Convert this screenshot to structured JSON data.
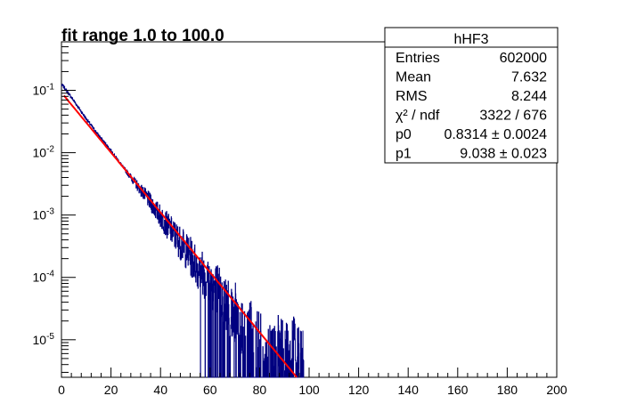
{
  "chart_data": {
    "type": "histogram",
    "title": "fit range 1.0 to 100.0",
    "xlabel": "",
    "ylabel": "",
    "xlim": [
      0,
      200
    ],
    "ylim": [
      2.5e-06,
      0.6
    ],
    "ylog": true,
    "x_ticks": [
      "0",
      "20",
      "40",
      "60",
      "80",
      "100",
      "120",
      "140",
      "160",
      "180",
      "200"
    ],
    "y_ticks": [
      {
        "base": "10",
        "exp": "-1",
        "value": 0.1
      },
      {
        "base": "10",
        "exp": "-2",
        "value": 0.01
      },
      {
        "base": "10",
        "exp": "-3",
        "value": 0.001
      },
      {
        "base": "10",
        "exp": "-4",
        "value": 0.0001
      },
      {
        "base": "10",
        "exp": "-5",
        "value": 1e-05
      }
    ],
    "histogram": {
      "color": "#000080",
      "x": [
        0.5,
        5,
        10,
        15,
        20,
        25,
        30,
        35,
        40,
        45,
        50,
        55,
        60,
        65,
        70,
        75,
        80,
        85,
        90,
        95,
        98
      ],
      "y": [
        0.12,
        0.068,
        0.035,
        0.019,
        0.0108,
        0.0058,
        0.0032,
        0.0018,
        0.00095,
        0.00052,
        0.00028,
        0.00015,
        8.5e-05,
        5e-05,
        2.6e-05,
        1.5e-05,
        9e-06,
        8e-06,
        7e-06,
        7e-06,
        6e-06
      ]
    },
    "fit": {
      "color": "#ff0000",
      "function": "p0/p1 * exp(-x/p1)",
      "x_range": [
        1.0,
        100.0
      ]
    },
    "stats": {
      "name": "hHF3",
      "rows": [
        {
          "label": "Entries",
          "value": "602000"
        },
        {
          "label": "Mean",
          "value": "7.632"
        },
        {
          "label": "RMS",
          "value": "8.244"
        },
        {
          "label": "χ² / ndf",
          "value": "3322 / 676"
        },
        {
          "label": "p0",
          "value": "0.8314 ± 0.0024"
        },
        {
          "label": "p1",
          "value": "9.038 ± 0.023"
        }
      ]
    },
    "params": {
      "p0": 0.8314,
      "p1": 9.038
    }
  }
}
